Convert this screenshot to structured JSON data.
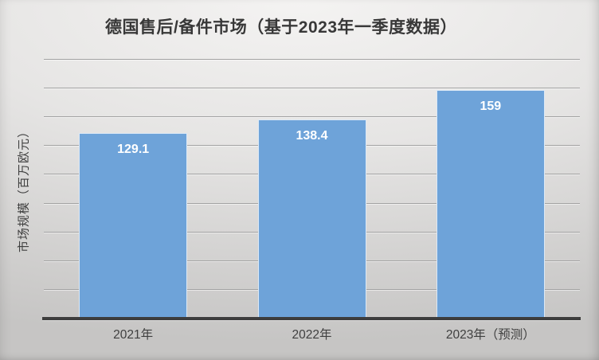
{
  "chart_data": {
    "type": "bar",
    "title": "德国售后/备件市场（基于2023年一季度数据）",
    "xlabel": "",
    "ylabel": "市场规模（百万欧元）",
    "categories": [
      "2021年",
      "2022年",
      "2023年（预测）"
    ],
    "values": [
      129.1,
      138.4,
      159
    ],
    "value_labels": [
      "129.1",
      "138.4",
      "159"
    ],
    "ylim": [
      0,
      180
    ],
    "gridline_step": 20,
    "grid": "horizontal-only",
    "y_tick_labels_visible": false,
    "legend": "none",
    "colors": {
      "bar_fill": "#6ea3d9",
      "bar_border": "#dce9f6",
      "bar_value_text": "#ffffff",
      "title_text": "#383838",
      "axis_text": "#404040",
      "gridline": "#a2a2a2",
      "axis_line": "#3d3d3d",
      "background_top": "#f4f3f2",
      "background_bottom": "#c6c5c4"
    }
  }
}
